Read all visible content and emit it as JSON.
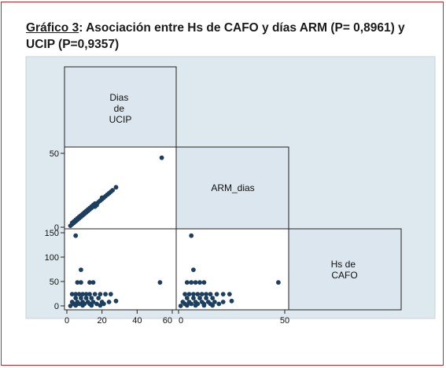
{
  "title": {
    "lead": "Gráfico 3",
    "rest": ": Asociación entre Hs de CAFO y días ARM (P= 0,8961) y UCIP (P=0,9357)"
  },
  "colors": {
    "frame": "#c0282d",
    "plot_background": "#dde9ef",
    "panel_fill": "#ffffff",
    "label_fill": "#dce6ee",
    "marker": "#1d3f5f"
  },
  "chart_data": {
    "type": "scatter",
    "subtype": "scatter-matrix-lower-triangle",
    "variables": [
      {
        "key": "ucip",
        "label": "Dias de UCIP",
        "lines": [
          "Dias",
          "de",
          "UCIP"
        ]
      },
      {
        "key": "arm",
        "label": "ARM_dias",
        "lines": [
          "ARM_dias"
        ]
      },
      {
        "key": "cafo",
        "label": "Hs de CAFO",
        "lines": [
          "Hs de",
          "CAFO"
        ]
      }
    ],
    "axes": {
      "ucip": {
        "range": [
          0,
          60
        ],
        "ticks": [
          0,
          20,
          40,
          60
        ]
      },
      "arm": {
        "range": [
          0,
          50
        ],
        "ticks": [
          0,
          50
        ]
      },
      "cafo": {
        "range": [
          0,
          150
        ],
        "ticks": [
          0,
          50,
          100,
          150
        ]
      }
    },
    "tick_labels": {
      "arm_row": [
        "0",
        "50"
      ],
      "cafo_row": [
        "0",
        "50",
        "100",
        "150"
      ],
      "ucip_col": [
        "0",
        "20",
        "40",
        "60"
      ],
      "arm_col": [
        "0",
        "50"
      ]
    },
    "panels": [
      {
        "x": "ucip",
        "y": "arm",
        "points": [
          [
            2,
            1
          ],
          [
            3,
            2
          ],
          [
            3,
            3
          ],
          [
            4,
            3
          ],
          [
            4,
            4
          ],
          [
            5,
            4
          ],
          [
            5,
            5
          ],
          [
            6,
            5
          ],
          [
            6,
            6
          ],
          [
            7,
            6
          ],
          [
            7,
            7
          ],
          [
            8,
            7
          ],
          [
            8,
            8
          ],
          [
            9,
            8
          ],
          [
            9,
            9
          ],
          [
            10,
            9
          ],
          [
            10,
            10
          ],
          [
            11,
            10
          ],
          [
            11,
            11
          ],
          [
            12,
            11
          ],
          [
            12,
            12
          ],
          [
            13,
            12
          ],
          [
            13,
            13
          ],
          [
            14,
            13
          ],
          [
            14,
            14
          ],
          [
            15,
            14
          ],
          [
            15,
            15
          ],
          [
            16,
            14
          ],
          [
            16,
            16
          ],
          [
            17,
            16
          ],
          [
            17,
            15
          ],
          [
            18,
            17
          ],
          [
            19,
            18
          ],
          [
            20,
            19
          ],
          [
            20,
            20
          ],
          [
            21,
            20
          ],
          [
            22,
            21
          ],
          [
            23,
            22
          ],
          [
            24,
            23
          ],
          [
            25,
            24
          ],
          [
            26,
            25
          ],
          [
            28,
            27
          ],
          [
            54,
            47
          ]
        ]
      },
      {
        "x": "ucip",
        "y": "cafo",
        "points": [
          [
            5,
            144
          ],
          [
            8,
            74
          ],
          [
            6,
            48
          ],
          [
            8,
            48
          ],
          [
            13,
            48
          ],
          [
            15,
            48
          ],
          [
            3,
            24
          ],
          [
            5,
            24
          ],
          [
            7,
            24
          ],
          [
            9,
            24
          ],
          [
            11,
            24
          ],
          [
            13,
            24
          ],
          [
            16,
            24
          ],
          [
            19,
            24
          ],
          [
            22,
            24
          ],
          [
            25,
            24
          ],
          [
            5,
            16
          ],
          [
            8,
            16
          ],
          [
            11,
            16
          ],
          [
            14,
            16
          ],
          [
            18,
            16
          ],
          [
            3,
            8
          ],
          [
            6,
            8
          ],
          [
            9,
            8
          ],
          [
            12,
            8
          ],
          [
            15,
            8
          ],
          [
            20,
            8
          ],
          [
            24,
            8
          ],
          [
            28,
            10
          ],
          [
            4,
            4
          ],
          [
            7,
            4
          ],
          [
            10,
            4
          ],
          [
            13,
            4
          ],
          [
            17,
            4
          ],
          [
            21,
            4
          ],
          [
            5,
            1
          ],
          [
            9,
            1
          ],
          [
            14,
            1
          ],
          [
            19,
            1
          ],
          [
            2,
            0
          ],
          [
            53,
            48
          ]
        ]
      },
      {
        "x": "arm",
        "y": "cafo",
        "points": [
          [
            6,
            144
          ],
          [
            7,
            74
          ],
          [
            4,
            48
          ],
          [
            6,
            48
          ],
          [
            8,
            48
          ],
          [
            10,
            48
          ],
          [
            12,
            48
          ],
          [
            3,
            24
          ],
          [
            5,
            24
          ],
          [
            7,
            24
          ],
          [
            9,
            24
          ],
          [
            11,
            24
          ],
          [
            13,
            24
          ],
          [
            15,
            24
          ],
          [
            18,
            24
          ],
          [
            21,
            24
          ],
          [
            24,
            24
          ],
          [
            4,
            16
          ],
          [
            7,
            16
          ],
          [
            10,
            16
          ],
          [
            13,
            16
          ],
          [
            16,
            16
          ],
          [
            2,
            8
          ],
          [
            5,
            8
          ],
          [
            8,
            8
          ],
          [
            11,
            8
          ],
          [
            14,
            8
          ],
          [
            17,
            8
          ],
          [
            21,
            8
          ],
          [
            25,
            10
          ],
          [
            3,
            4
          ],
          [
            6,
            4
          ],
          [
            9,
            4
          ],
          [
            12,
            4
          ],
          [
            15,
            4
          ],
          [
            19,
            4
          ],
          [
            4,
            1
          ],
          [
            8,
            1
          ],
          [
            12,
            1
          ],
          [
            16,
            1
          ],
          [
            1,
            0
          ],
          [
            47,
            48
          ]
        ]
      }
    ]
  }
}
